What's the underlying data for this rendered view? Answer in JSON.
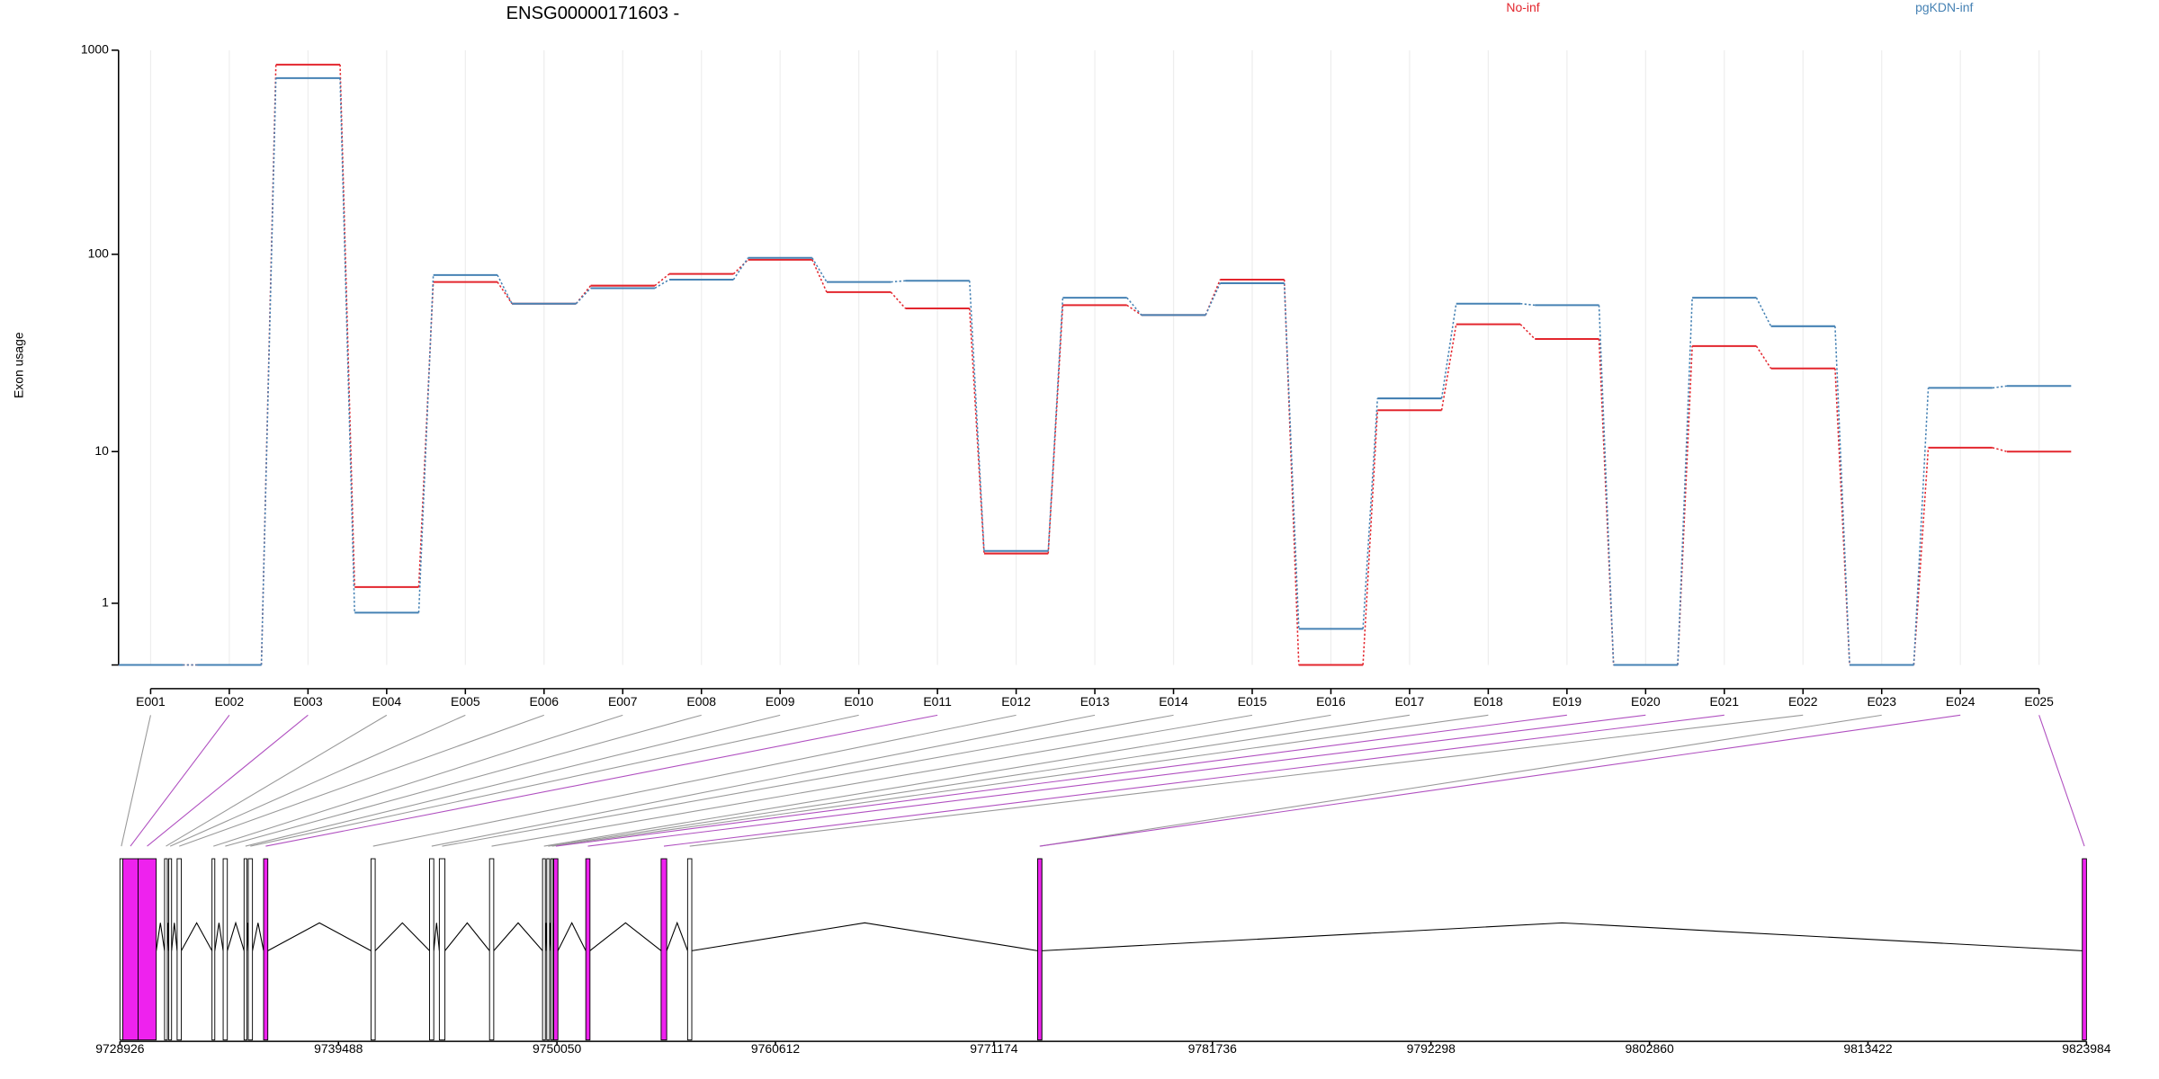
{
  "chart_data": [
    {
      "type": "step",
      "title": "ENSG00000171603 -",
      "y_label": "Exon usage",
      "categories": [
        "E001",
        "E002",
        "E003",
        "E004",
        "E005",
        "E006",
        "E007",
        "E008",
        "E009",
        "E010",
        "E011",
        "E012",
        "E013",
        "E014",
        "E015",
        "E016",
        "E017",
        "E018",
        "E019",
        "E020",
        "E021",
        "E022",
        "E023",
        "E024",
        "E025"
      ],
      "series": [
        {
          "name": "No-inf",
          "color": "#e3262e",
          "values": [
            0,
            0,
            850,
            1.4,
            73,
            57,
            70,
            80,
            94,
            65,
            54,
            2.5,
            56,
            50,
            75,
            0,
            16.5,
            45,
            38,
            0,
            35,
            27,
            0,
            10.5,
            10
          ]
        },
        {
          "name": "pgKDN-inf",
          "color": "#4682b4",
          "values": [
            0,
            0,
            730,
            0.8,
            79,
            57,
            68,
            75,
            96,
            73,
            74,
            2.6,
            61,
            50,
            72,
            0.5,
            19,
            57,
            56,
            0,
            61,
            44,
            0,
            21.5,
            22
          ]
        }
      ],
      "ylim": [
        0,
        1000
      ],
      "yticks": [
        1,
        10,
        100,
        1000
      ],
      "y_scale": "log1p",
      "grid": true
    },
    {
      "type": "gene-model",
      "xlim": [
        9728926,
        9823984
      ],
      "xticks": [
        9728926,
        9739488,
        9750050,
        9760612,
        9771174,
        9781736,
        9792298,
        9802860,
        9813422,
        9823984
      ],
      "exon_start": [
        9728926,
        9729061,
        9729802,
        9731083,
        9731286,
        9731690,
        9733376,
        9733915,
        9734926,
        9735129,
        9735870,
        9741062,
        9743893,
        9744365,
        9746792,
        9749354,
        9749557,
        9749759,
        9749894,
        9751444,
        9755085,
        9756366,
        9773287,
        9773287,
        9823782
      ],
      "exon_end": [
        9729061,
        9729802,
        9730679,
        9731218,
        9731421,
        9731893,
        9733511,
        9734117,
        9735061,
        9735331,
        9736073,
        9741264,
        9744095,
        9744635,
        9746995,
        9749489,
        9749692,
        9749860,
        9750096,
        9751646,
        9755355,
        9756568,
        9773489,
        9773489,
        9823984
      ],
      "highlighted": [
        false,
        true,
        true,
        false,
        false,
        false,
        false,
        false,
        false,
        false,
        true,
        false,
        false,
        false,
        false,
        false,
        false,
        false,
        true,
        true,
        true,
        false,
        false,
        true,
        true
      ],
      "highlight_color": "#ee22ee"
    }
  ]
}
